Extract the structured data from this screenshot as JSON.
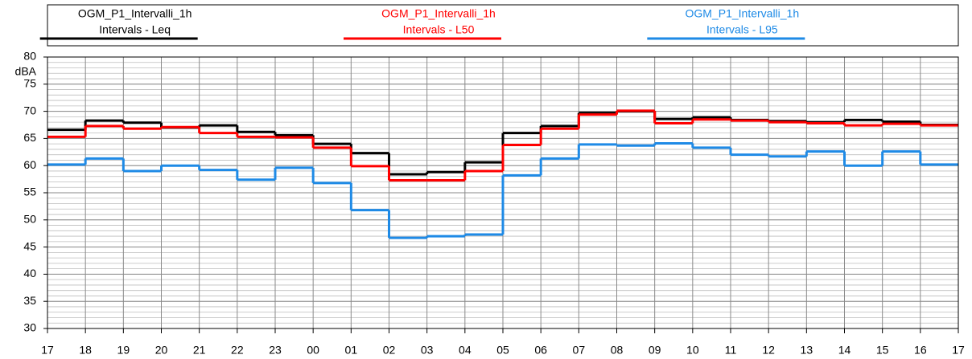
{
  "chart_data": {
    "type": "step",
    "y_unit": "dBA",
    "x_labels": [
      "17",
      "18",
      "19",
      "20",
      "21",
      "22",
      "23",
      "00",
      "01",
      "02",
      "03",
      "04",
      "05",
      "06",
      "07",
      "08",
      "09",
      "10",
      "11",
      "12",
      "13",
      "14",
      "15",
      "16",
      "17"
    ],
    "ylim": [
      30,
      80
    ],
    "yticks": [
      30,
      35,
      40,
      45,
      50,
      55,
      60,
      65,
      70,
      75,
      80
    ],
    "grid": true,
    "minor_grid": 1,
    "series": [
      {
        "source": "OGM_P1_Intervalli_1h",
        "name": "Intervals - Leq",
        "color": "#000000",
        "values": [
          66.6,
          68.3,
          67.9,
          67.0,
          67.4,
          66.2,
          65.6,
          64.0,
          62.3,
          58.4,
          58.8,
          60.6,
          66.0,
          67.3,
          69.7,
          70.0,
          68.6,
          68.9,
          68.4,
          68.2,
          68.0,
          68.4,
          68.1,
          67.5
        ]
      },
      {
        "source": "OGM_P1_Intervalli_1h",
        "name": "Intervals - L50",
        "color": "#ff0000",
        "values": [
          65.3,
          67.3,
          66.8,
          67.1,
          66.0,
          65.3,
          65.2,
          63.3,
          59.9,
          57.3,
          57.3,
          59.0,
          63.8,
          66.8,
          69.4,
          70.1,
          67.8,
          68.5,
          68.3,
          68.0,
          67.8,
          67.4,
          67.7,
          67.4
        ]
      },
      {
        "source": "OGM_P1_Intervalli_1h",
        "name": "Intervals - L95",
        "color": "#1e8ae6",
        "values": [
          60.2,
          61.3,
          59.0,
          60.0,
          59.2,
          57.4,
          59.6,
          56.8,
          51.8,
          46.7,
          47.0,
          47.3,
          58.2,
          61.3,
          63.9,
          63.7,
          64.1,
          63.3,
          62.0,
          61.7,
          62.6,
          60.0,
          62.6,
          60.2
        ]
      }
    ]
  }
}
